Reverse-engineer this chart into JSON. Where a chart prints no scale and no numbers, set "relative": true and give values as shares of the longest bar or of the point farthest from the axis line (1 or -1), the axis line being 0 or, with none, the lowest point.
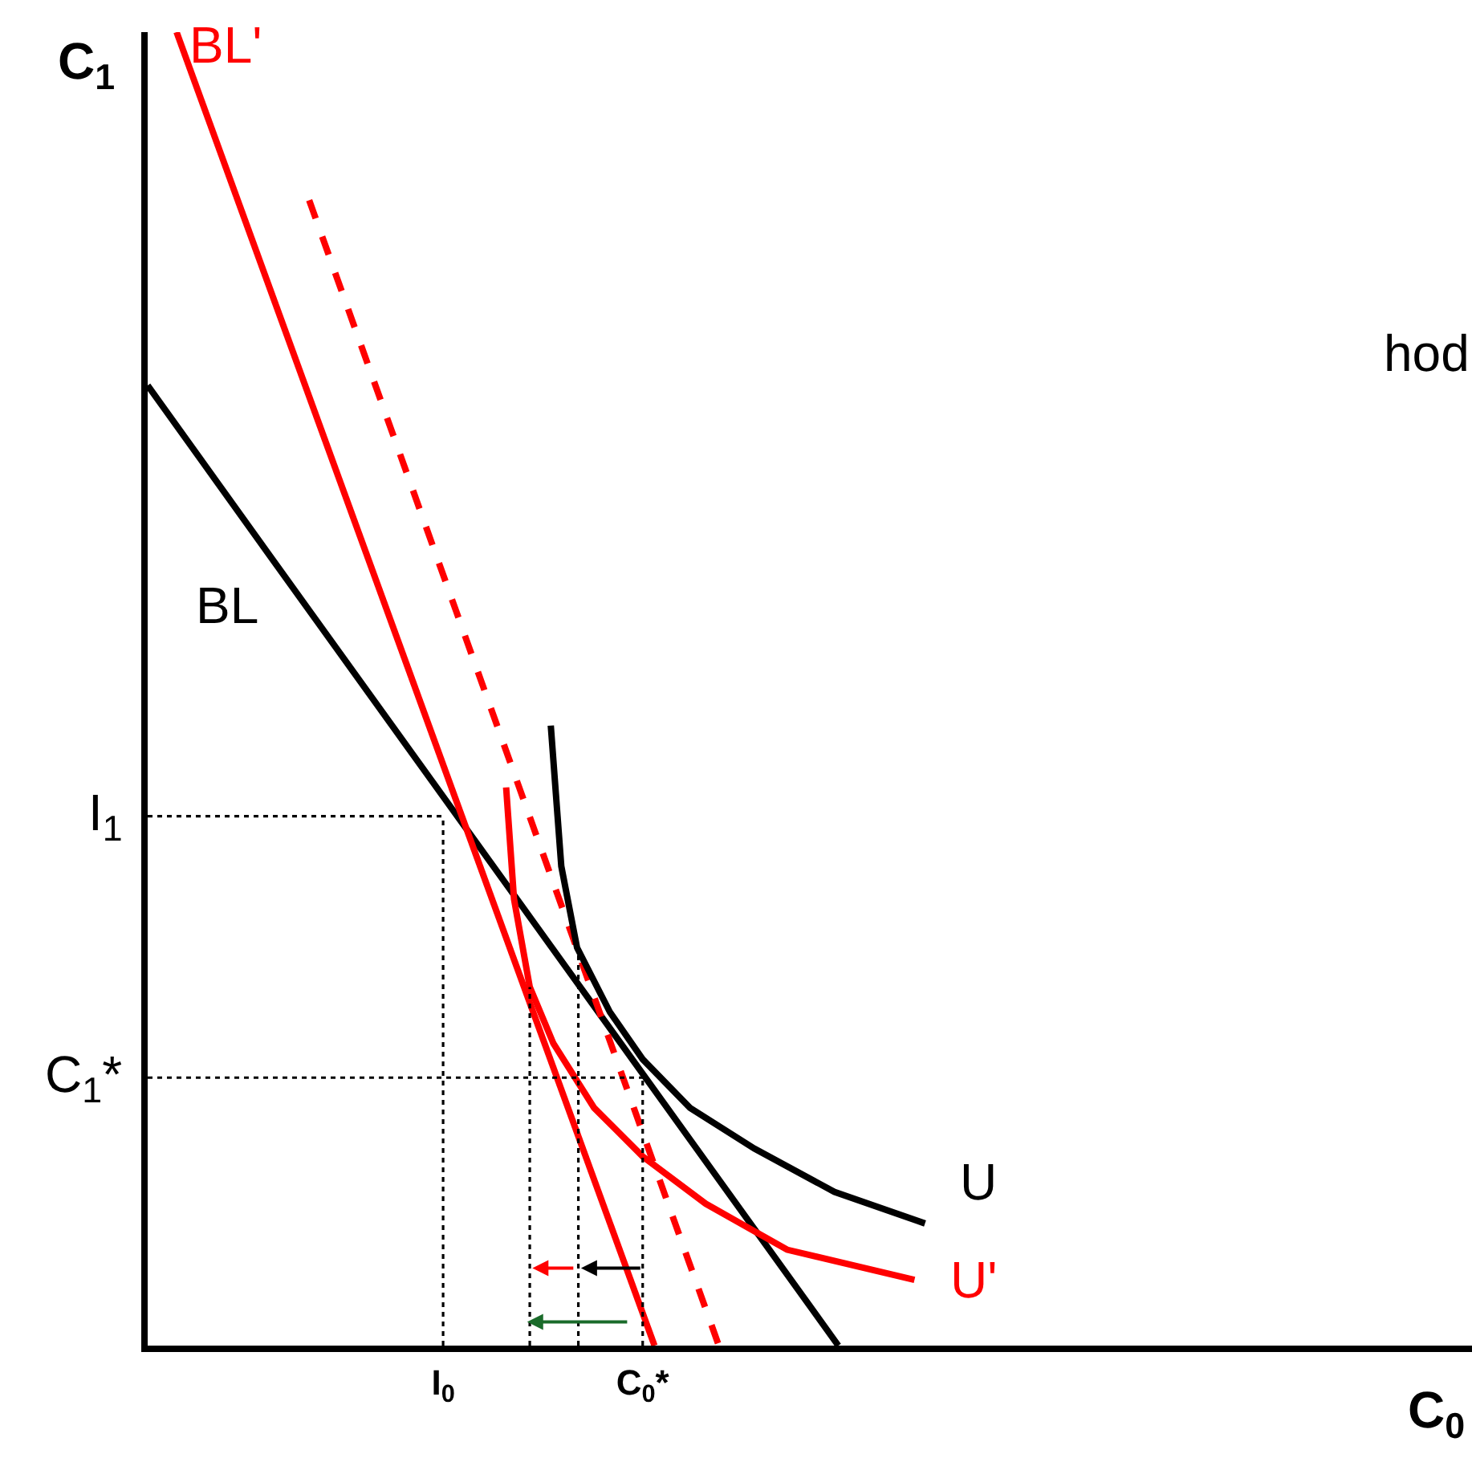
{
  "chart_data": {
    "type": "line",
    "relative": true,
    "xlabel": "C$_{0}$",
    "ylabel": "C$_{1}$",
    "xlim": [
      0,
      1.0086
    ],
    "xticks": [
      {
        "value": 0.225,
        "label": "I$_{0}$"
      },
      {
        "value": 0.377,
        "label": "C$_{0}$*"
      }
    ],
    "line_style": "solid",
    "marker": "none",
    "grid": false,
    "legend": false,
    "annotations": [
      {
        "text": "I$_{1}$",
        "x": 0,
        "y": 0.403
      },
      {
        "text": "C$_{1}$*",
        "x": 0,
        "y": 0.204
      },
      "hod"
    ],
    "series": [
      {
        "name": "BL",
        "color": "#000000",
        "x": [
          0,
          0.094,
          0.526
        ],
        "values": [
          0.731,
          0.6,
          0
        ]
      },
      {
        "name": "BL'",
        "color": "#ff0000",
        "x": [
          0.022,
          0.386
        ],
        "values": [
          1,
          0
        ]
      },
      {
        "color": "#ff0000",
        "line_style": "dashed",
        "x": [
          0.123,
          0.435
        ],
        "values": [
          0.872,
          0
        ]
      },
      {
        "name": "U",
        "color": "#000000",
        "x": [
          0.307,
          0.315,
          0.327,
          0.352,
          0.377,
          0.413,
          0.462,
          0.523,
          0.592
        ],
        "values": [
          0.472,
          0.365,
          0.303,
          0.254,
          0.218,
          0.181,
          0.15,
          0.117,
          0.093
        ]
      },
      {
        "name": "U'",
        "color": "#ff0000",
        "x": [
          0.273,
          0.279,
          0.291,
          0.309,
          0.34,
          0.377,
          0.425,
          0.487,
          0.584
        ],
        "values": [
          0.425,
          0.34,
          0.273,
          0.23,
          0.181,
          0.144,
          0.108,
          0.073,
          0.05
        ]
      },
      {
        "color": "#000000",
        "line_style": "dotted",
        "x": [
          0,
          0.225
        ],
        "values": [
          0.403,
          0.403
        ]
      },
      {
        "color": "#000000",
        "line_style": "dotted",
        "x": [
          0.225,
          0.225
        ],
        "values": [
          0,
          0.403
        ]
      },
      {
        "color": "#000000",
        "line_style": "dotted",
        "x": [
          0,
          0.377
        ],
        "values": [
          0.204,
          0.204
        ]
      },
      {
        "color": "#000000",
        "line_style": "dotted",
        "x": [
          0.377,
          0.377
        ],
        "values": [
          0,
          0.204
        ]
      },
      {
        "color": "#000000",
        "line_style": "dotted",
        "x": [
          0.291,
          0.291
        ],
        "values": [
          0,
          0.273
        ]
      },
      {
        "color": "#000000",
        "line_style": "dotted",
        "x": [
          0.328,
          0.328
        ],
        "values": [
          0,
          0.303
        ]
      }
    ]
  }
}
